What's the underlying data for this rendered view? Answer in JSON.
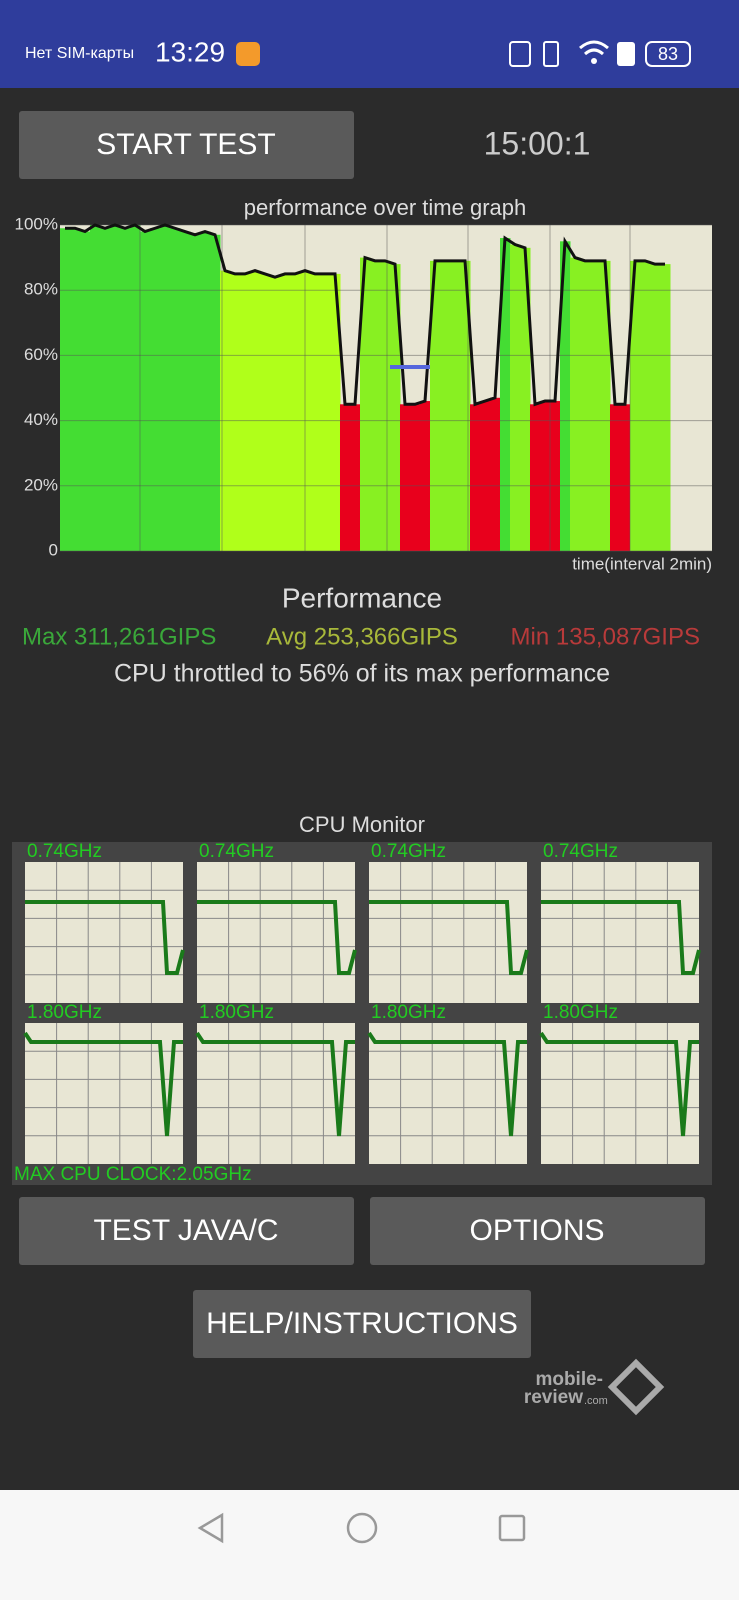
{
  "status_bar": {
    "carrier": "Нет SIM-карты",
    "time": "13:29",
    "battery": "83"
  },
  "controls": {
    "start_button": "START TEST",
    "timer": "15:00:1"
  },
  "graph": {
    "title": "performance over time graph",
    "x_label": "time(interval 2min)",
    "ylim": [
      0,
      100
    ],
    "yticks": [
      0,
      {
        "value": 20,
        "label": "20%"
      },
      {
        "value": 40,
        "label": "40%"
      },
      {
        "value": 60,
        "label": "60%"
      },
      {
        "value": 80,
        "label": "80%"
      },
      {
        "value": 100,
        "label": "100%"
      }
    ],
    "values": [
      99,
      99,
      98,
      100,
      99,
      100,
      99,
      100,
      98,
      99,
      100,
      99,
      98,
      97,
      98,
      97,
      86,
      85,
      85,
      86,
      85,
      84,
      85,
      85,
      86,
      85,
      85,
      85,
      45,
      45,
      90,
      89,
      89,
      88,
      45,
      45,
      46,
      89,
      89,
      89,
      89,
      45,
      46,
      47,
      96,
      94,
      93,
      45,
      46,
      46,
      95,
      90,
      89,
      89,
      89,
      45,
      45,
      89,
      89,
      88,
      88
    ]
  },
  "performance": {
    "heading": "Performance",
    "max": "Max 311,261GIPS",
    "avg": "Avg 253,366GIPS",
    "min": "Min 135,087GIPS",
    "summary": "CPU throttled to 56% of its max performance"
  },
  "cpu_monitor": {
    "title": "CPU Monitor",
    "cores": [
      "0.74GHz",
      "0.74GHz",
      "0.74GHz",
      "0.74GHz",
      "1.80GHz",
      "1.80GHz",
      "1.80GHz",
      "1.80GHz"
    ],
    "max_clock": "MAX CPU CLOCK:2.05GHz"
  },
  "buttons": {
    "test": "TEST JAVA/C",
    "options": "OPTIONS",
    "help": "HELP/INSTRUCTIONS"
  },
  "watermark": {
    "line1": "mobile-",
    "line2": "review",
    "suffix": ".com"
  }
}
